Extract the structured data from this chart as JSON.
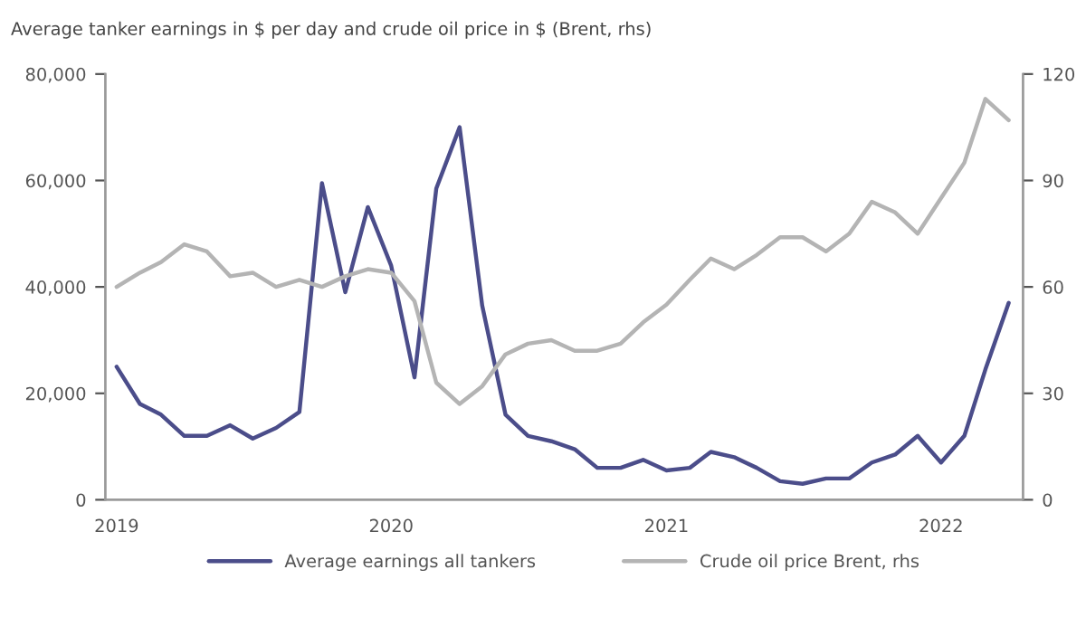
{
  "chart_data": {
    "type": "line",
    "title": "Average tanker earnings in $ per day and crude oil price in $ (Brent, rhs)",
    "x": [
      "2019-01",
      "2019-02",
      "2019-03",
      "2019-04",
      "2019-05",
      "2019-06",
      "2019-07",
      "2019-08",
      "2019-09",
      "2019-10",
      "2019-11",
      "2019-12",
      "2020-01",
      "2020-02",
      "2020-03",
      "2020-04",
      "2020-05",
      "2020-06",
      "2020-07",
      "2020-08",
      "2020-09",
      "2020-10",
      "2020-11",
      "2020-12",
      "2021-01",
      "2021-02",
      "2021-03",
      "2021-04",
      "2021-05",
      "2021-06",
      "2021-07",
      "2021-08",
      "2021-09",
      "2021-10",
      "2021-11",
      "2021-12",
      "2022-01",
      "2022-02",
      "2022-03",
      "2022-04"
    ],
    "series": [
      {
        "name": "Average earnings all tankers",
        "color": "#4b4d8a",
        "values": [
          25000,
          18000,
          16000,
          12000,
          12000,
          14000,
          11500,
          13500,
          16500,
          59500,
          39000,
          55000,
          44000,
          23000,
          58500,
          70000,
          36500,
          16000,
          12000,
          11000,
          9500,
          6000,
          6000,
          7500,
          5500,
          6000,
          9000,
          8000,
          6000,
          3500,
          3000,
          4000,
          4000,
          7000,
          8500,
          12000,
          7000,
          12000,
          24500,
          37000
        ]
      },
      {
        "name": "Crude oil price Brent, rhs",
        "color": "#b4b4b4",
        "axis": "y2",
        "values": [
          60,
          64,
          67,
          72,
          70,
          63,
          64,
          60,
          62,
          60,
          63,
          65,
          64,
          56,
          33,
          27,
          32,
          41,
          44,
          45,
          42,
          42,
          44,
          50,
          55,
          62,
          68,
          65,
          69,
          74,
          74,
          70,
          75,
          84,
          81,
          75,
          85,
          95,
          113,
          107
        ]
      }
    ],
    "xlim": [
      "2018-12-17",
      "2022-04-20"
    ],
    "xticks": [
      {
        "value": "2019-01",
        "label": "2019"
      },
      {
        "value": "2020-01",
        "label": "2020"
      },
      {
        "value": "2021-01",
        "label": "2021"
      },
      {
        "value": "2022-01",
        "label": "2022"
      }
    ],
    "ylim": [
      0,
      80000
    ],
    "yticks": [
      {
        "value": 0,
        "label": "0"
      },
      {
        "value": 20000,
        "label": "20,000"
      },
      {
        "value": 40000,
        "label": "40,000"
      },
      {
        "value": 60000,
        "label": "60,000"
      },
      {
        "value": 80000,
        "label": "80,000"
      }
    ],
    "y2lim": [
      0,
      120
    ],
    "y2ticks": [
      0,
      30,
      60,
      90,
      120
    ],
    "grid": false,
    "legend": "bottom",
    "marker": "none",
    "line_style": "solid"
  }
}
